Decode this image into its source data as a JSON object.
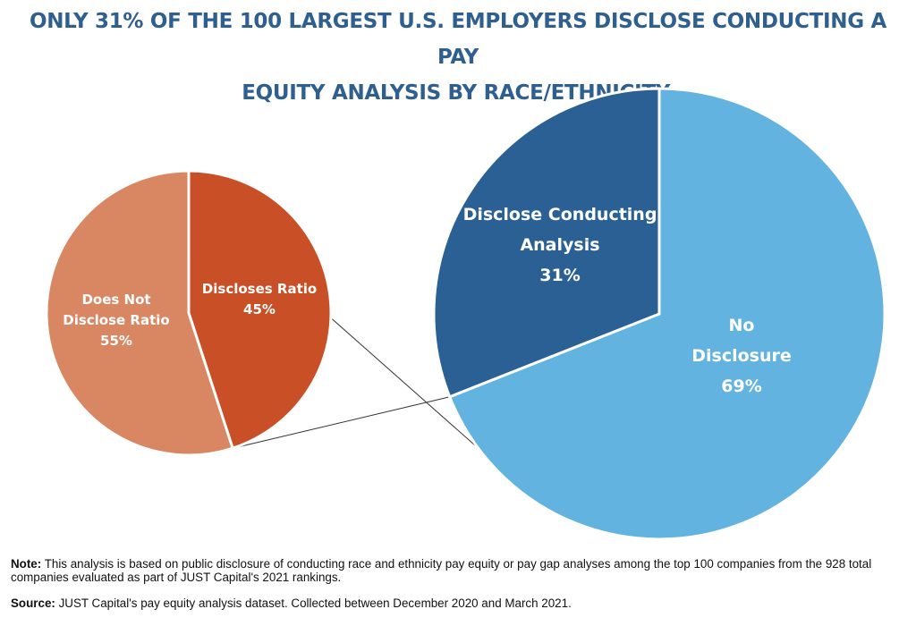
{
  "title": {
    "line1": "ONLY 31% OF THE 100 LARGEST U.S. EMPLOYERS DISCLOSE CONDUCTING A PAY",
    "line2": "EQUITY ANALYSIS BY RACE/ETHNICITY."
  },
  "chart_data": [
    {
      "type": "pie",
      "slices": [
        {
          "label_lines": [
            "Discloses Ratio",
            "45%"
          ],
          "value": 45,
          "color": "#c94f27"
        },
        {
          "label_lines": [
            "Does Not",
            "Disclose Ratio",
            "55%"
          ],
          "value": 55,
          "color": "#d98762"
        }
      ]
    },
    {
      "type": "pie",
      "slices": [
        {
          "label_lines": [
            "No",
            "Disclosure",
            "69%"
          ],
          "value": 69,
          "color": "#63b3e0"
        },
        {
          "label_lines": [
            "Disclose Conducting",
            "Analysis",
            "31%"
          ],
          "value": 31,
          "color": "#2a6094"
        }
      ]
    }
  ],
  "footer": {
    "note_label": "Note:",
    "note_text": " This analysis is based on public disclosure of conducting race and ethnicity pay equity or pay gap analyses among the top 100 companies from the 928 total companies evaluated as part of JUST Capital's 2021 rankings.",
    "source_label": "Source:",
    "source_text": " JUST Capital's pay equity analysis dataset. Collected between December 2020 and March 2021."
  }
}
